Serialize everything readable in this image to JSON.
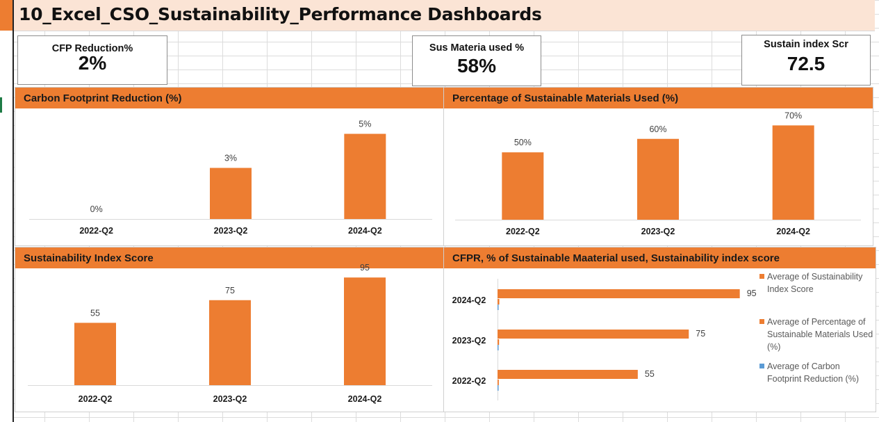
{
  "title": "10_Excel_CSO_Sustainability_Performance Dashboards",
  "kpis": {
    "cfp": {
      "label": "CFP Reduction%",
      "value": "2%"
    },
    "materials": {
      "label": "Sus Materia used %",
      "value": "58%"
    },
    "index": {
      "label": "Sustain index Scr",
      "value": "72.5"
    }
  },
  "colors": {
    "accent": "#ed7d31",
    "title_bg": "#fbe4d5",
    "series_blue": "#5b9bd5"
  },
  "panels": {
    "cfp": {
      "title": "Carbon Footprint Reduction (%)"
    },
    "materials": {
      "title": "Percentage of Sustainable Materials Used (%)"
    },
    "index": {
      "title": "Sustainability Index Score"
    },
    "combined": {
      "title": "CFPR, % of Sustainable Maaterial used, Sustainability index score"
    }
  },
  "chart_data": [
    {
      "type": "bar",
      "title": "Carbon Footprint Reduction (%)",
      "categories": [
        "2022-Q2",
        "2023-Q2",
        "2024-Q2"
      ],
      "values": [
        0,
        3,
        5
      ],
      "data_labels": [
        "0%",
        "3%",
        "5%"
      ],
      "ylim": [
        0,
        6
      ],
      "color": "#ed7d31"
    },
    {
      "type": "bar",
      "title": "Percentage of Sustainable Materials Used (%)",
      "categories": [
        "2022-Q2",
        "2023-Q2",
        "2024-Q2"
      ],
      "values": [
        50,
        60,
        70
      ],
      "data_labels": [
        "50%",
        "60%",
        "70%"
      ],
      "ylim": [
        0,
        80
      ],
      "color": "#ed7d31"
    },
    {
      "type": "bar",
      "title": "Sustainability Index Score",
      "categories": [
        "2022-Q2",
        "2023-Q2",
        "2024-Q2"
      ],
      "values": [
        55,
        75,
        95
      ],
      "data_labels": [
        "55",
        "75",
        "95"
      ],
      "ylim": [
        0,
        100
      ],
      "color": "#ed7d31"
    },
    {
      "type": "bar",
      "orientation": "horizontal",
      "title": "CFPR, % of Sustainable Maaterial used, Sustainability index score",
      "categories": [
        "2024-Q2",
        "2023-Q2",
        "2022-Q2"
      ],
      "series": [
        {
          "name": "Average of Sustainability Index Score",
          "values": [
            95,
            75,
            55
          ],
          "labels": [
            "95",
            "75",
            "55"
          ],
          "color": "#ed7d31"
        },
        {
          "name": "Average of Percentage of Sustainable Materials Used (%)",
          "values": [
            0.7,
            0.6,
            0.5
          ],
          "color": "#ed7d31"
        },
        {
          "name": "Average of Carbon Footprint Reduction (%)",
          "values": [
            0.05,
            0.03,
            0
          ],
          "color": "#5b9bd5"
        }
      ],
      "xlim": [
        0,
        100
      ],
      "legend_position": "right"
    }
  ]
}
